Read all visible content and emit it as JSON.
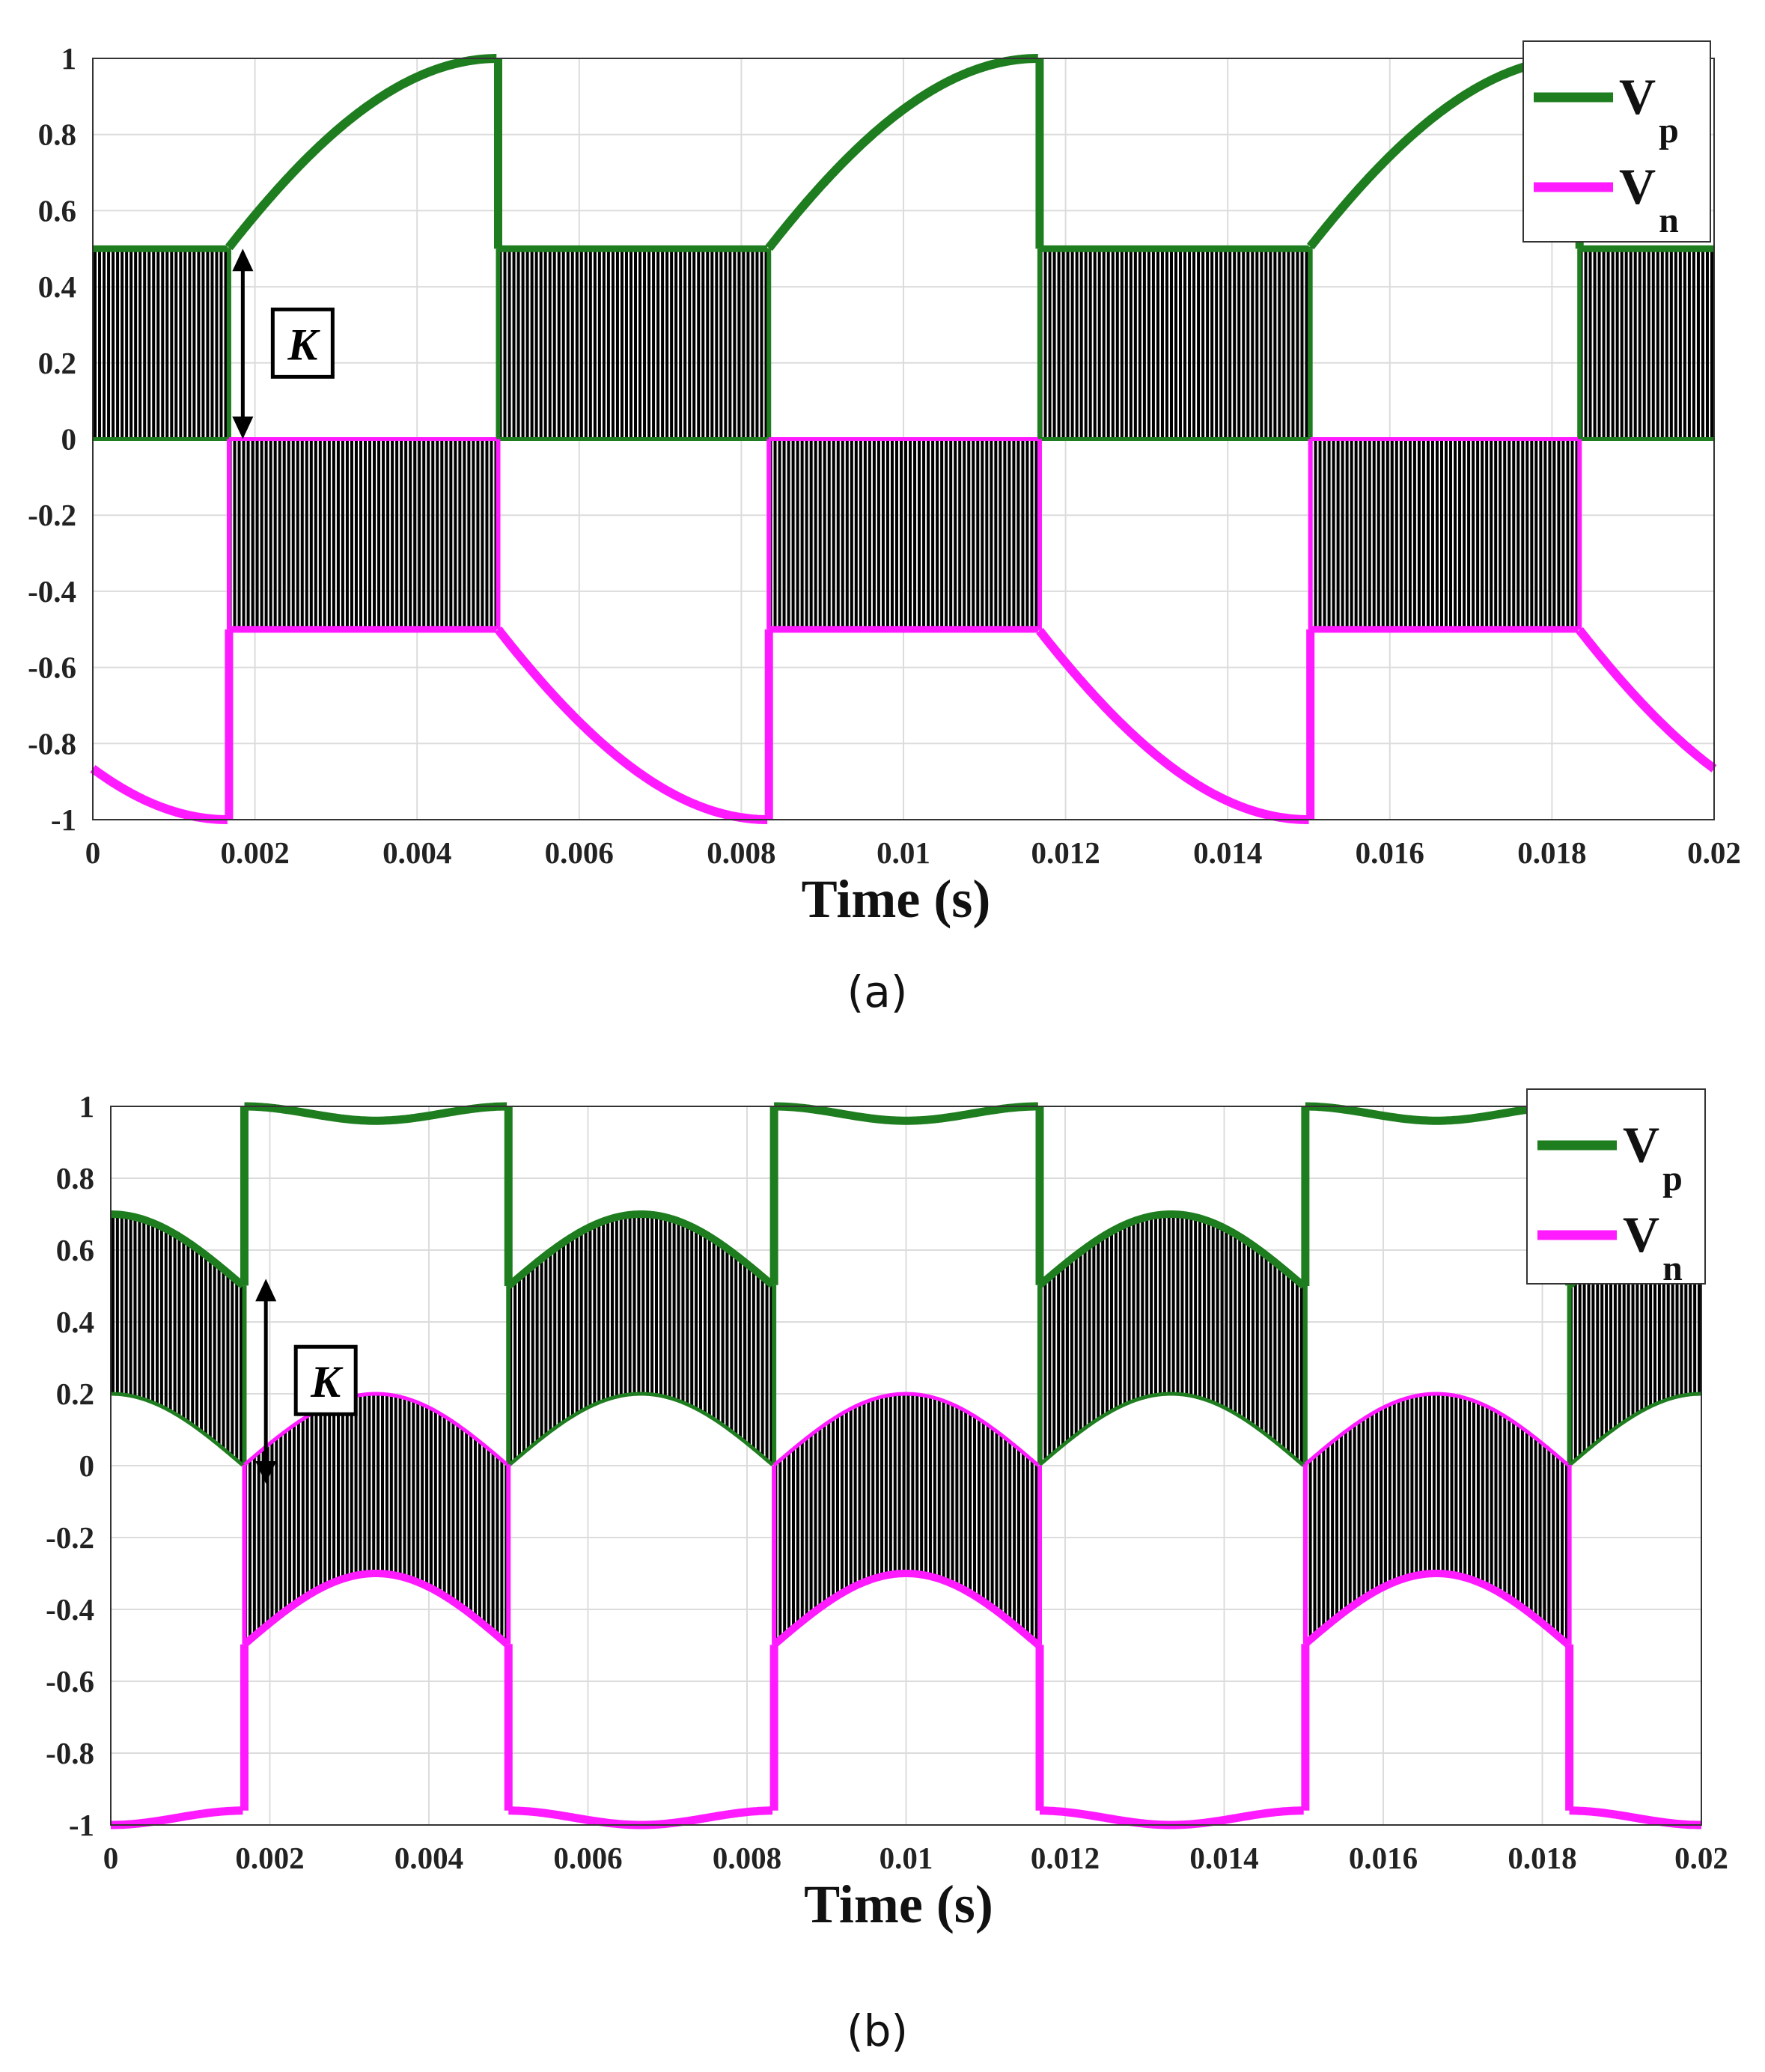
{
  "chart_data": [
    {
      "id": "a",
      "type": "line",
      "caption": "(a)",
      "xlabel": "Time (s)",
      "ylabel": "",
      "xlim": [
        0,
        0.02
      ],
      "ylim": [
        -1,
        1
      ],
      "x_ticks": [
        0,
        0.002,
        0.004,
        0.006,
        0.008,
        0.01,
        0.012,
        0.014,
        0.016,
        0.018,
        0.02
      ],
      "x_tick_labels": [
        "0",
        "0.002",
        "0.004",
        "0.006",
        "0.008",
        "0.01",
        "0.012",
        "0.014",
        "0.016",
        "0.018",
        "0.02"
      ],
      "y_ticks": [
        1,
        0.8,
        0.6,
        0.4,
        0.2,
        0,
        -0.2,
        -0.4,
        -0.6,
        -0.8,
        -1
      ],
      "y_tick_labels": [
        "1",
        "0.8",
        "0.6",
        "0.4",
        "0.2",
        "0",
        "-0.2",
        "-0.4",
        "-0.6",
        "-0.8",
        "-1"
      ],
      "grid": true,
      "legend_position": "top-right",
      "annotation": {
        "label": "K",
        "x": 0.00185,
        "y_from": 0.5,
        "y_to": 0
      },
      "sample_step": 8e-05,
      "carrier_frequency_hz": 6000,
      "series": [
        {
          "name": "Vp",
          "name_main": "V",
          "name_sub": "p",
          "color": "#1e7d1e",
          "description": "max phase voltage |sin| during 60-degree windows, carrier band [0, 0.5] elsewhere",
          "upper_in_band": 0.5,
          "lower_in_band": 0,
          "on_intervals": [
            [
              0.001667,
              0.005
            ],
            [
              0.008333,
              0.011667
            ],
            [
              0.015,
              0.018333
            ]
          ]
        },
        {
          "name": "Vn",
          "name_main": "V",
          "name_sub": "n",
          "color": "#ff1aff",
          "description": "min phase voltage -|sin| during 60-degree windows, carrier band [-0.5, 0] elsewhere",
          "upper_in_band": 0,
          "lower_in_band": -0.5,
          "on_intervals": [
            [
              0,
              0.001667
            ],
            [
              0.005,
              0.008333
            ],
            [
              0.011667,
              0.015
            ],
            [
              0.018333,
              0.02
            ]
          ]
        }
      ]
    },
    {
      "id": "b",
      "type": "line",
      "caption": "(b)",
      "xlabel": "Time (s)",
      "ylabel": "",
      "xlim": [
        0,
        0.02
      ],
      "ylim": [
        -1,
        1
      ],
      "x_ticks": [
        0,
        0.002,
        0.004,
        0.006,
        0.008,
        0.01,
        0.012,
        0.014,
        0.016,
        0.018,
        0.02
      ],
      "x_tick_labels": [
        "0",
        "0.002",
        "0.004",
        "0.006",
        "0.008",
        "0.01",
        "0.012",
        "0.014",
        "0.016",
        "0.018",
        "0.02"
      ],
      "y_ticks": [
        1,
        0.8,
        0.6,
        0.4,
        0.2,
        0,
        -0.2,
        -0.4,
        -0.6,
        -0.8,
        -1
      ],
      "y_tick_labels": [
        "1",
        "0.8",
        "0.6",
        "0.4",
        "0.2",
        "0",
        "-0.2",
        "-0.4",
        "-0.6",
        "-0.8",
        "-1"
      ],
      "grid": true,
      "legend_position": "top-right",
      "annotation": {
        "label": "K",
        "x": 0.00195,
        "y_from": 0.52,
        "y_to": -0.05
      },
      "sample_step": 8e-05,
      "carrier_frequency_hz": 6000,
      "series": [
        {
          "name": "Vp",
          "name_main": "V",
          "name_sub": "p",
          "color": "#1e7d1e",
          "description": "upper envelope ~1 (dips to 0.96) in windows; carrier band between 0.2 cos(3wt) and 0.5+0.2 cos(3wt) elsewhere",
          "on_intervals": [
            [
              0.001667,
              0.005
            ],
            [
              0.008333,
              0.011667
            ],
            [
              0.015,
              0.018333
            ]
          ]
        },
        {
          "name": "Vn",
          "name_main": "V",
          "name_sub": "n",
          "color": "#ff1aff",
          "description": "lower envelope ~-1 in windows; carrier band between -0.5-0.2 cos(3wt) and -0.2 cos(3wt) elsewhere",
          "on_intervals": [
            [
              0,
              0.001667
            ],
            [
              0.005,
              0.008333
            ],
            [
              0.011667,
              0.015
            ],
            [
              0.018333,
              0.02
            ]
          ]
        }
      ]
    }
  ]
}
